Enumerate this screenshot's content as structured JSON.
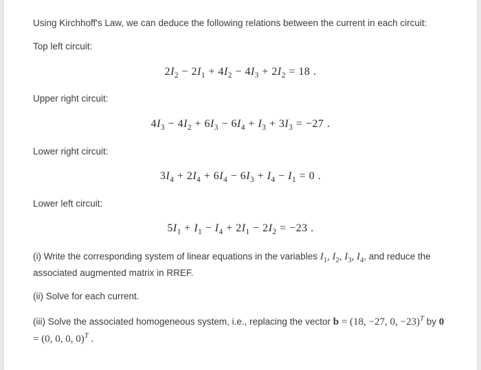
{
  "intro": "Using Kirchhoff's Law, we can deduce the following relations between the current in each circuit:",
  "sections": {
    "topLeft": {
      "label": "Top left circuit:",
      "equation": "2I₂ − 2I₁ + 4I₂ − 4I₃ + 2I₂ = 18 ."
    },
    "upperRight": {
      "label": "Upper right circuit:",
      "equation": "4I₃ − 4I₂ + 6I₃ − 6I₄ + I₃ + 3I₃ = −27 ."
    },
    "lowerRight": {
      "label": "Lower right circuit:",
      "equation": "3I₄ + 2I₄ + 6I₄ − 6I₃ + I₄ − I₁ = 0 ."
    },
    "lowerLeft": {
      "label": "Lower left circuit:",
      "equation": "5I₁ + I₁ − I₄ + 2I₁ − 2I₂ = −23 ."
    }
  },
  "q1_pre": "(i) Write the corresponding system of linear equations in the variables ",
  "q1_vars": "I₁, I₂, I₃, I₄",
  "q1_post": ", and reduce the associated augmented matrix in RREF.",
  "q2": "(ii) Solve for each current.",
  "q3_pre": "(iii) Solve the associated homogeneous system, i.e., replacing the vector ",
  "q3_b": "b",
  "q3_eq1": " = (18, −27, 0, −23)",
  "q3_t": "T",
  "q3_by": " by ",
  "q3_zero": "0",
  "q3_eq2": " = (0, 0, 0, 0)",
  "q3_t2": "T",
  "q3_end": " .",
  "styling": {
    "page_bg": "#ffffff",
    "outer_bg": "#e9e9e9",
    "text_color": "#3a3a3a",
    "body_fontsize": 13.5,
    "eq_fontsize": 16,
    "eq_font": "Times New Roman",
    "body_font": "Helvetica"
  }
}
